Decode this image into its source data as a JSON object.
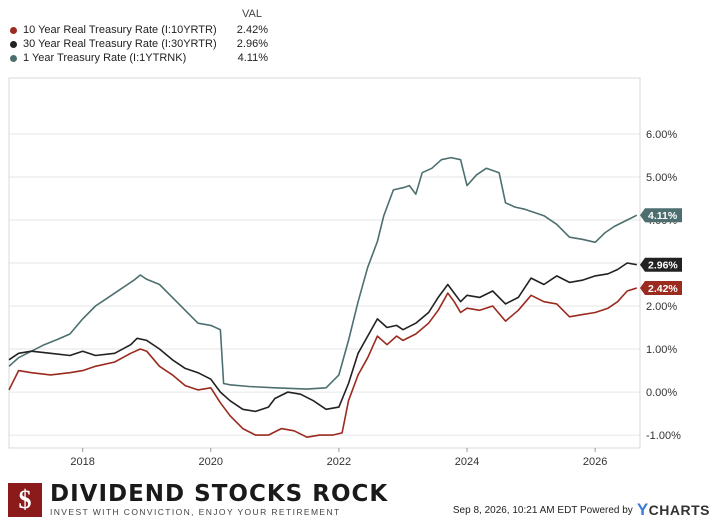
{
  "legend": {
    "header": "VAL",
    "items": [
      {
        "name": "10 Year Real Treasury Rate (I:10YRTR)",
        "value": "2.42%",
        "color": "#9b2a1f"
      },
      {
        "name": "30 Year Real Treasury Rate (I:30YRTR)",
        "value": "2.96%",
        "color": "#222222"
      },
      {
        "name": "1 Year Treasury Rate (I:1YTRNK)",
        "value": "4.11%",
        "color": "#4d6f6f"
      }
    ]
  },
  "chart_data": {
    "type": "line",
    "xlim": [
      2016.85,
      2026.7
    ],
    "ylim": [
      -1.3,
      7.3
    ],
    "x_ticks": [
      2018,
      2020,
      2022,
      2024,
      2026
    ],
    "x_tick_labels": [
      "2018",
      "2020",
      "2022",
      "2024",
      "2026"
    ],
    "y_ticks": [
      -1,
      0,
      1,
      2,
      3,
      4,
      5,
      6
    ],
    "y_tick_labels": [
      "-1.00%",
      "0.00%",
      "1.00%",
      "2.00%",
      "3.00%",
      "4.00%",
      "5.00%",
      "6.00%"
    ],
    "grid": "horizontal",
    "series": [
      {
        "name": "1 Year Treasury Rate (I:1YTRNK)",
        "color": "#4d6f6f",
        "end_label": "4.11%",
        "points": [
          [
            2016.85,
            0.6
          ],
          [
            2017.0,
            0.8
          ],
          [
            2017.2,
            0.95
          ],
          [
            2017.4,
            1.1
          ],
          [
            2017.6,
            1.22
          ],
          [
            2017.8,
            1.35
          ],
          [
            2018.0,
            1.7
          ],
          [
            2018.2,
            2.0
          ],
          [
            2018.4,
            2.2
          ],
          [
            2018.6,
            2.4
          ],
          [
            2018.8,
            2.6
          ],
          [
            2018.9,
            2.72
          ],
          [
            2019.0,
            2.62
          ],
          [
            2019.2,
            2.5
          ],
          [
            2019.4,
            2.2
          ],
          [
            2019.6,
            1.9
          ],
          [
            2019.8,
            1.6
          ],
          [
            2020.0,
            1.55
          ],
          [
            2020.15,
            1.45
          ],
          [
            2020.2,
            0.2
          ],
          [
            2020.3,
            0.17
          ],
          [
            2020.6,
            0.13
          ],
          [
            2021.0,
            0.1
          ],
          [
            2021.5,
            0.07
          ],
          [
            2021.8,
            0.1
          ],
          [
            2022.0,
            0.4
          ],
          [
            2022.15,
            1.2
          ],
          [
            2022.3,
            2.1
          ],
          [
            2022.45,
            2.9
          ],
          [
            2022.6,
            3.5
          ],
          [
            2022.7,
            4.1
          ],
          [
            2022.85,
            4.7
          ],
          [
            2023.0,
            4.75
          ],
          [
            2023.1,
            4.8
          ],
          [
            2023.2,
            4.6
          ],
          [
            2023.3,
            5.1
          ],
          [
            2023.45,
            5.2
          ],
          [
            2023.6,
            5.4
          ],
          [
            2023.75,
            5.45
          ],
          [
            2023.9,
            5.4
          ],
          [
            2024.0,
            4.8
          ],
          [
            2024.15,
            5.05
          ],
          [
            2024.3,
            5.2
          ],
          [
            2024.5,
            5.1
          ],
          [
            2024.6,
            4.4
          ],
          [
            2024.75,
            4.3
          ],
          [
            2024.9,
            4.25
          ],
          [
            2025.0,
            4.2
          ],
          [
            2025.2,
            4.1
          ],
          [
            2025.4,
            3.9
          ],
          [
            2025.6,
            3.6
          ],
          [
            2025.8,
            3.55
          ],
          [
            2026.0,
            3.48
          ],
          [
            2026.15,
            3.7
          ],
          [
            2026.3,
            3.85
          ],
          [
            2026.5,
            4.0
          ],
          [
            2026.65,
            4.11
          ]
        ]
      },
      {
        "name": "30 Year Real Treasury Rate (I:30YRTR)",
        "color": "#222222",
        "end_label": "2.96%",
        "points": [
          [
            2016.85,
            0.75
          ],
          [
            2017.0,
            0.9
          ],
          [
            2017.2,
            0.95
          ],
          [
            2017.5,
            0.9
          ],
          [
            2017.8,
            0.85
          ],
          [
            2018.0,
            0.95
          ],
          [
            2018.2,
            0.85
          ],
          [
            2018.5,
            0.9
          ],
          [
            2018.75,
            1.1
          ],
          [
            2018.85,
            1.25
          ],
          [
            2019.0,
            1.2
          ],
          [
            2019.2,
            1.0
          ],
          [
            2019.4,
            0.75
          ],
          [
            2019.6,
            0.55
          ],
          [
            2019.8,
            0.45
          ],
          [
            2020.0,
            0.3
          ],
          [
            2020.15,
            0.0
          ],
          [
            2020.3,
            -0.2
          ],
          [
            2020.5,
            -0.4
          ],
          [
            2020.7,
            -0.45
          ],
          [
            2020.9,
            -0.35
          ],
          [
            2021.0,
            -0.15
          ],
          [
            2021.2,
            0.0
          ],
          [
            2021.4,
            -0.05
          ],
          [
            2021.6,
            -0.2
          ],
          [
            2021.8,
            -0.4
          ],
          [
            2022.0,
            -0.35
          ],
          [
            2022.15,
            0.2
          ],
          [
            2022.3,
            0.9
          ],
          [
            2022.45,
            1.3
          ],
          [
            2022.6,
            1.7
          ],
          [
            2022.75,
            1.5
          ],
          [
            2022.9,
            1.55
          ],
          [
            2023.0,
            1.45
          ],
          [
            2023.2,
            1.6
          ],
          [
            2023.4,
            1.85
          ],
          [
            2023.55,
            2.2
          ],
          [
            2023.7,
            2.5
          ],
          [
            2023.8,
            2.3
          ],
          [
            2023.9,
            2.1
          ],
          [
            2024.0,
            2.25
          ],
          [
            2024.2,
            2.2
          ],
          [
            2024.4,
            2.35
          ],
          [
            2024.6,
            2.05
          ],
          [
            2024.8,
            2.2
          ],
          [
            2025.0,
            2.65
          ],
          [
            2025.2,
            2.5
          ],
          [
            2025.4,
            2.7
          ],
          [
            2025.6,
            2.55
          ],
          [
            2025.8,
            2.6
          ],
          [
            2026.0,
            2.7
          ],
          [
            2026.2,
            2.75
          ],
          [
            2026.35,
            2.85
          ],
          [
            2026.5,
            3.0
          ],
          [
            2026.65,
            2.96
          ]
        ]
      },
      {
        "name": "10 Year Real Treasury Rate (I:10YRTR)",
        "color": "#9b2a1f",
        "end_label": "2.42%",
        "points": [
          [
            2016.85,
            0.05
          ],
          [
            2017.0,
            0.5
          ],
          [
            2017.2,
            0.45
          ],
          [
            2017.5,
            0.4
          ],
          [
            2017.8,
            0.45
          ],
          [
            2018.0,
            0.5
          ],
          [
            2018.2,
            0.6
          ],
          [
            2018.5,
            0.7
          ],
          [
            2018.75,
            0.9
          ],
          [
            2018.9,
            1.0
          ],
          [
            2019.0,
            0.95
          ],
          [
            2019.2,
            0.6
          ],
          [
            2019.4,
            0.4
          ],
          [
            2019.6,
            0.15
          ],
          [
            2019.8,
            0.05
          ],
          [
            2020.0,
            0.1
          ],
          [
            2020.15,
            -0.25
          ],
          [
            2020.3,
            -0.55
          ],
          [
            2020.5,
            -0.85
          ],
          [
            2020.7,
            -1.0
          ],
          [
            2020.9,
            -1.0
          ],
          [
            2021.1,
            -0.85
          ],
          [
            2021.3,
            -0.9
          ],
          [
            2021.5,
            -1.05
          ],
          [
            2021.7,
            -1.0
          ],
          [
            2021.9,
            -1.0
          ],
          [
            2022.05,
            -0.95
          ],
          [
            2022.15,
            -0.2
          ],
          [
            2022.3,
            0.4
          ],
          [
            2022.45,
            0.8
          ],
          [
            2022.6,
            1.3
          ],
          [
            2022.75,
            1.1
          ],
          [
            2022.9,
            1.3
          ],
          [
            2023.0,
            1.2
          ],
          [
            2023.2,
            1.35
          ],
          [
            2023.4,
            1.6
          ],
          [
            2023.55,
            1.9
          ],
          [
            2023.7,
            2.3
          ],
          [
            2023.8,
            2.1
          ],
          [
            2023.9,
            1.85
          ],
          [
            2024.0,
            1.95
          ],
          [
            2024.2,
            1.9
          ],
          [
            2024.4,
            2.0
          ],
          [
            2024.6,
            1.65
          ],
          [
            2024.8,
            1.9
          ],
          [
            2025.0,
            2.25
          ],
          [
            2025.2,
            2.1
          ],
          [
            2025.4,
            2.05
          ],
          [
            2025.6,
            1.75
          ],
          [
            2025.8,
            1.8
          ],
          [
            2026.0,
            1.85
          ],
          [
            2026.2,
            1.95
          ],
          [
            2026.35,
            2.1
          ],
          [
            2026.5,
            2.35
          ],
          [
            2026.65,
            2.42
          ]
        ]
      }
    ]
  },
  "footer": {
    "brand_icon": "$",
    "brand_name": "DIVIDEND STOCKS ROCK",
    "brand_tagline": "INVEST WITH CONVICTION, ENJOY YOUR RETIREMENT",
    "timestamp": "Sep 8, 2026, 10:21 AM EDT Powered by",
    "ycharts_y": "Y",
    "ycharts_rest": "CHARTS"
  }
}
